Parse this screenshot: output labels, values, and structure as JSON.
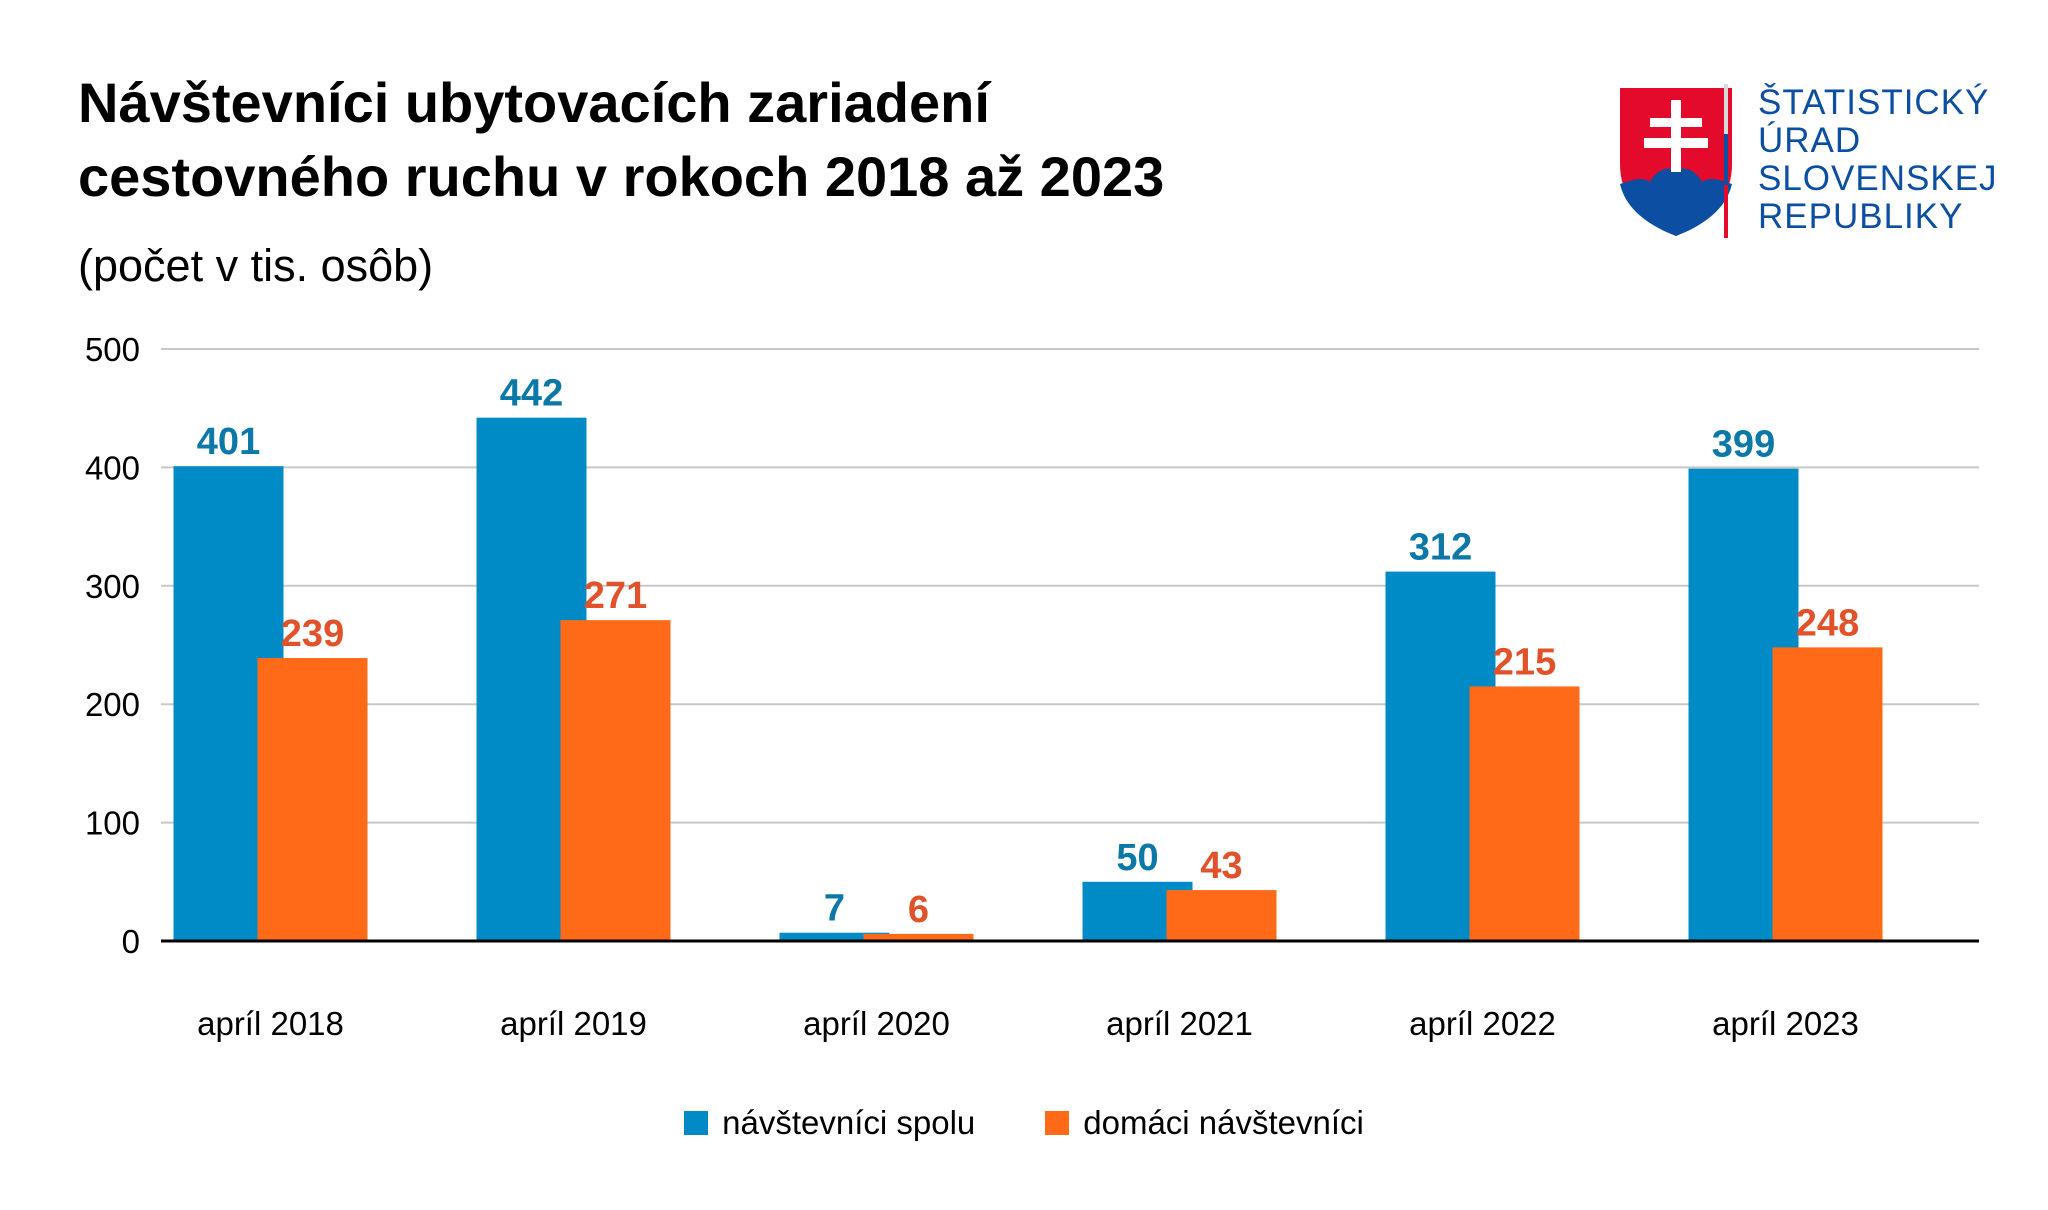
{
  "header": {
    "title_line1": "Návštevníci ubytovacích zariadení",
    "title_line2": "cestovného ruchu v rokoch 2018 až 2023",
    "subtitle": "(počet v tis. osôb)"
  },
  "logo": {
    "lines": [
      "ŠTATISTICKÝ",
      "ÚRAD",
      "SLOVENSKEJ",
      "REPUBLIKY"
    ]
  },
  "colors": {
    "series1": "#008BC6",
    "series2": "#FF6A19",
    "label1": "#0B78A8",
    "label2": "#E0532A"
  },
  "chart_data": {
    "type": "bar",
    "title": "Návštevníci ubytovacích zariadení cestovného ruchu v rokoch 2018 až 2023",
    "ylabel": "(počet v tis. osôb)",
    "categories": [
      "apríl 2018",
      "apríl 2019",
      "apríl 2020",
      "apríl 2021",
      "apríl 2022",
      "apríl 2023"
    ],
    "series": [
      {
        "name": "návštevníci spolu",
        "values": [
          401,
          442,
          7,
          50,
          312,
          399
        ]
      },
      {
        "name": "domáci návštevníci",
        "values": [
          239,
          271,
          6,
          43,
          215,
          248
        ]
      }
    ],
    "ylim": [
      0,
      500
    ],
    "yticks": [
      0,
      100,
      200,
      300,
      400,
      500
    ],
    "grid": true,
    "legend": "bottom-center"
  }
}
